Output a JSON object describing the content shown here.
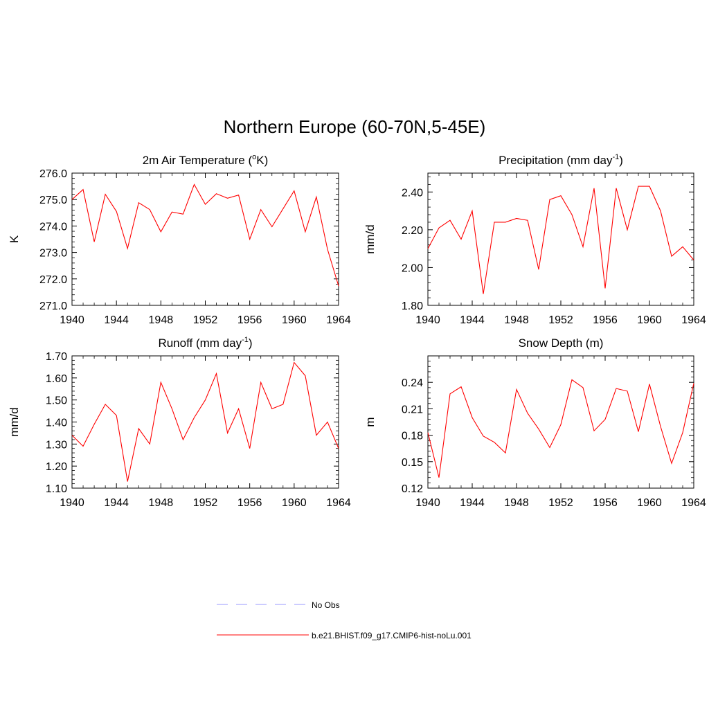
{
  "figure": {
    "title": "Northern Europe (60-70N,5-45E)"
  },
  "chart_data": [
    {
      "type": "line",
      "title": "2m Air Temperature (°K)",
      "title_parts": [
        "2m Air Temperature (",
        "o",
        "K)"
      ],
      "ylabel": "K",
      "xlabel": "",
      "xlim": [
        1940,
        1964
      ],
      "ylim": [
        271.0,
        276.0
      ],
      "x_ticks": [
        1940,
        1944,
        1948,
        1952,
        1956,
        1960,
        1964
      ],
      "y_ticks": [
        "271.0",
        "272.0",
        "273.0",
        "274.0",
        "275.0",
        "276.0"
      ],
      "series": [
        {
          "name": "b.e21.BHIST.f09_g17.CMIP6-hist-noLu.001",
          "color": "#ff0000",
          "x": [
            1940,
            1941,
            1942,
            1943,
            1944,
            1945,
            1946,
            1947,
            1948,
            1949,
            1950,
            1951,
            1952,
            1953,
            1954,
            1955,
            1956,
            1957,
            1958,
            1959,
            1960,
            1961,
            1962,
            1963,
            1964
          ],
          "values": [
            275.0,
            275.38,
            273.4,
            275.2,
            274.55,
            273.15,
            274.88,
            274.62,
            273.78,
            274.53,
            274.45,
            275.57,
            274.82,
            275.22,
            275.05,
            275.17,
            273.5,
            274.62,
            273.97,
            274.65,
            275.33,
            273.78,
            275.1,
            273.12,
            271.73
          ]
        }
      ],
      "grid": false
    },
    {
      "type": "line",
      "title": "Precipitation (mm day-1)",
      "title_parts": [
        "Precipitation (mm day",
        "-1",
        ")"
      ],
      "ylabel": "mm/d",
      "xlabel": "",
      "xlim": [
        1940,
        1964
      ],
      "ylim": [
        1.8,
        2.5
      ],
      "x_ticks": [
        1940,
        1944,
        1948,
        1952,
        1956,
        1960,
        1964
      ],
      "y_ticks": [
        "1.80",
        "2.00",
        "2.20",
        "2.40"
      ],
      "series": [
        {
          "name": "b.e21.BHIST.f09_g17.CMIP6-hist-noLu.001",
          "color": "#ff0000",
          "x": [
            1940,
            1941,
            1942,
            1943,
            1944,
            1945,
            1946,
            1947,
            1948,
            1949,
            1950,
            1951,
            1952,
            1953,
            1954,
            1955,
            1956,
            1957,
            1958,
            1959,
            1960,
            1961,
            1962,
            1963,
            1964
          ],
          "values": [
            2.1,
            2.21,
            2.25,
            2.15,
            2.3,
            1.86,
            2.24,
            2.24,
            2.26,
            2.25,
            1.99,
            2.36,
            2.38,
            2.28,
            2.11,
            2.42,
            1.89,
            2.42,
            2.2,
            2.43,
            2.43,
            2.3,
            2.06,
            2.11,
            2.04
          ]
        }
      ],
      "grid": false
    },
    {
      "type": "line",
      "title": "Runoff (mm day-1)",
      "title_parts": [
        "Runoff (mm day",
        "-1",
        ")"
      ],
      "ylabel": "mm/d",
      "xlabel": "",
      "xlim": [
        1940,
        1964
      ],
      "ylim": [
        1.1,
        1.7
      ],
      "x_ticks": [
        1940,
        1944,
        1948,
        1952,
        1956,
        1960,
        1964
      ],
      "y_ticks": [
        "1.10",
        "1.20",
        "1.30",
        "1.40",
        "1.50",
        "1.60",
        "1.70"
      ],
      "series": [
        {
          "name": "b.e21.BHIST.f09_g17.CMIP6-hist-noLu.001",
          "color": "#ff0000",
          "x": [
            1940,
            1941,
            1942,
            1943,
            1944,
            1945,
            1946,
            1947,
            1948,
            1949,
            1950,
            1951,
            1952,
            1953,
            1954,
            1955,
            1956,
            1957,
            1958,
            1959,
            1960,
            1961,
            1962,
            1963,
            1964
          ],
          "values": [
            1.34,
            1.29,
            1.39,
            1.48,
            1.43,
            1.13,
            1.37,
            1.3,
            1.58,
            1.46,
            1.32,
            1.42,
            1.5,
            1.62,
            1.35,
            1.46,
            1.28,
            1.58,
            1.46,
            1.48,
            1.67,
            1.61,
            1.34,
            1.4,
            1.28
          ]
        }
      ],
      "grid": false
    },
    {
      "type": "line",
      "title": "Snow Depth (m)",
      "title_parts": [
        "Snow Depth (m)",
        "",
        ""
      ],
      "ylabel": "m",
      "xlabel": "",
      "xlim": [
        1940,
        1964
      ],
      "ylim": [
        0.12,
        0.27
      ],
      "x_ticks": [
        1940,
        1944,
        1948,
        1952,
        1956,
        1960,
        1964
      ],
      "y_ticks": [
        "0.12",
        "0.15",
        "0.18",
        "0.21",
        "0.24"
      ],
      "series": [
        {
          "name": "b.e21.BHIST.f09_g17.CMIP6-hist-noLu.001",
          "color": "#ff0000",
          "x": [
            1940,
            1941,
            1942,
            1943,
            1944,
            1945,
            1946,
            1947,
            1948,
            1949,
            1950,
            1951,
            1952,
            1953,
            1954,
            1955,
            1956,
            1957,
            1958,
            1959,
            1960,
            1961,
            1962,
            1963,
            1964
          ],
          "values": [
            0.183,
            0.132,
            0.227,
            0.235,
            0.2,
            0.179,
            0.172,
            0.16,
            0.232,
            0.205,
            0.187,
            0.166,
            0.192,
            0.243,
            0.234,
            0.185,
            0.198,
            0.233,
            0.23,
            0.184,
            0.238,
            0.19,
            0.148,
            0.183,
            0.239
          ]
        }
      ],
      "grid": false
    }
  ],
  "legend": {
    "items": [
      {
        "label": "No Obs",
        "color": "#9999ff",
        "style": "dashed"
      },
      {
        "label": "b.e21.BHIST.f09_g17.CMIP6-hist-noLu.001",
        "color": "#ff0000",
        "style": "solid"
      }
    ],
    "placement": "bottom-center"
  }
}
